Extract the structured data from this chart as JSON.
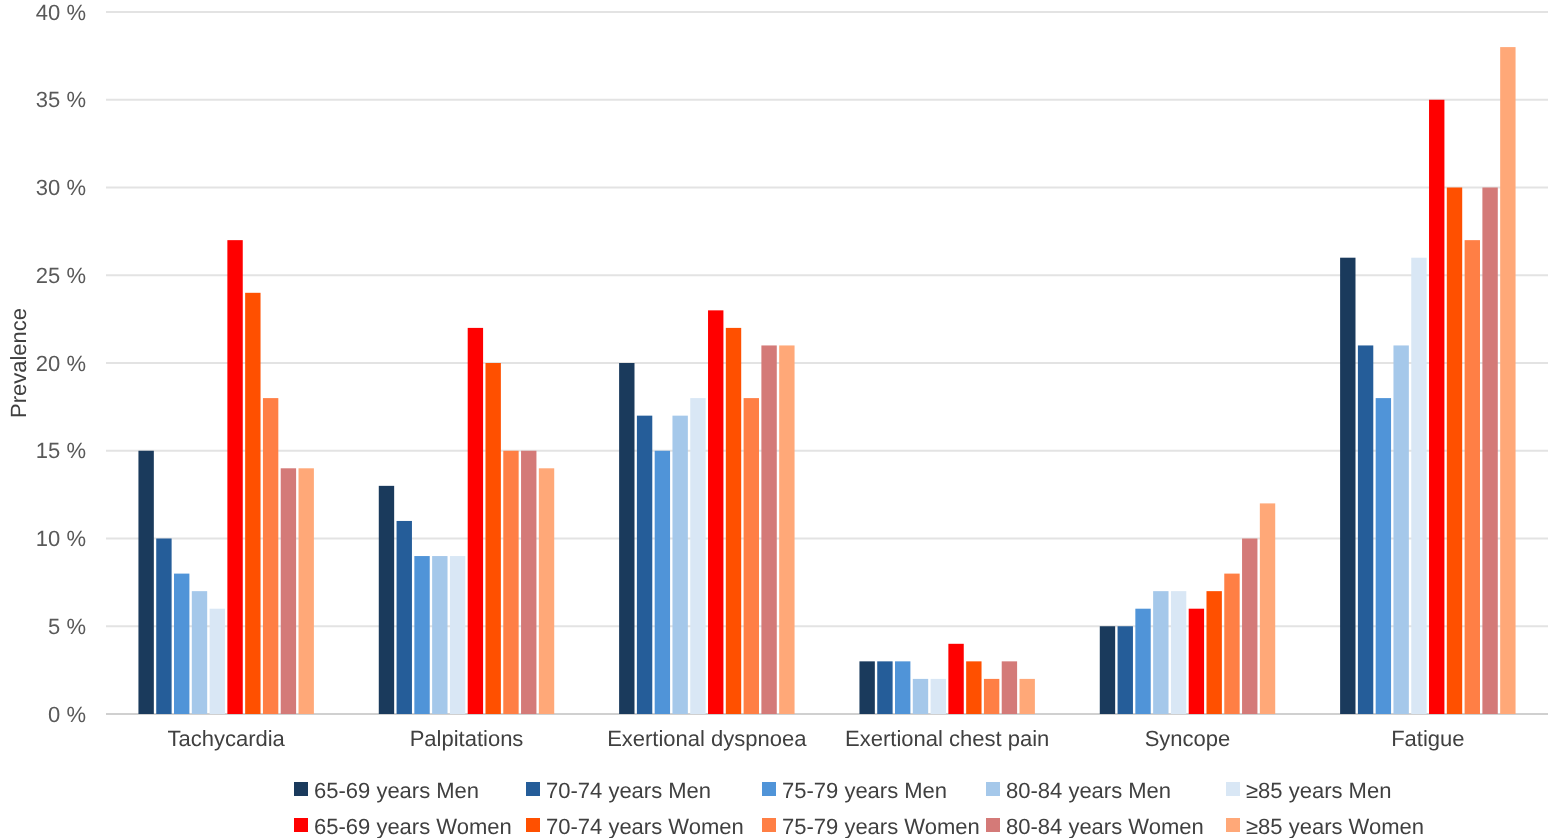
{
  "chart_data": {
    "type": "bar",
    "ylabel": "Prevalence",
    "categories": [
      "Tachycardia",
      "Palpitations",
      "Exertional dyspnoea",
      "Exertional chest pain",
      "Syncope",
      "Fatigue"
    ],
    "series": [
      {
        "name": "65-69 years Men",
        "color": "#1a3a5c",
        "values": [
          15,
          13,
          20,
          3,
          5,
          26
        ]
      },
      {
        "name": "70-74 years Men",
        "color": "#255d99",
        "values": [
          10,
          11,
          17,
          3,
          5,
          21
        ]
      },
      {
        "name": "75-79 years Men",
        "color": "#5094d8",
        "values": [
          8,
          9,
          15,
          3,
          6,
          18
        ]
      },
      {
        "name": "80-84 years Men",
        "color": "#a5c8ea",
        "values": [
          7,
          9,
          17,
          2,
          7,
          21
        ]
      },
      {
        "name": "≥85 years Men",
        "color": "#d9e7f5",
        "values": [
          6,
          9,
          18,
          2,
          7,
          26
        ]
      },
      {
        "name": "65-69 years Women",
        "color": "#ff0000",
        "values": [
          27,
          22,
          23,
          4,
          6,
          35
        ]
      },
      {
        "name": "70-74 years Women",
        "color": "#ff5000",
        "values": [
          24,
          20,
          22,
          3,
          7,
          30
        ]
      },
      {
        "name": "75-79 years Women",
        "color": "#ff7f45",
        "values": [
          18,
          15,
          18,
          2,
          8,
          27
        ]
      },
      {
        "name": "80-84 years Women",
        "color": "#d47a78",
        "values": [
          14,
          15,
          21,
          3,
          10,
          30
        ]
      },
      {
        "name": "≥85 years Women",
        "color": "#ffa878",
        "values": [
          14,
          14,
          21,
          2,
          12,
          38
        ]
      }
    ],
    "ylim": [
      0,
      40
    ],
    "yticks": [
      {
        "value": 0,
        "label": "0 %"
      },
      {
        "value": 5,
        "label": "5 %"
      },
      {
        "value": 10,
        "label": "10 %"
      },
      {
        "value": 15,
        "label": "15 %"
      },
      {
        "value": 20,
        "label": "20 %"
      },
      {
        "value": 25,
        "label": "25 %"
      },
      {
        "value": 30,
        "label": "30 %"
      },
      {
        "value": 35,
        "label": "35 %"
      },
      {
        "value": 40,
        "label": "40 %"
      }
    ],
    "grid": "y",
    "legend": "bottom"
  }
}
